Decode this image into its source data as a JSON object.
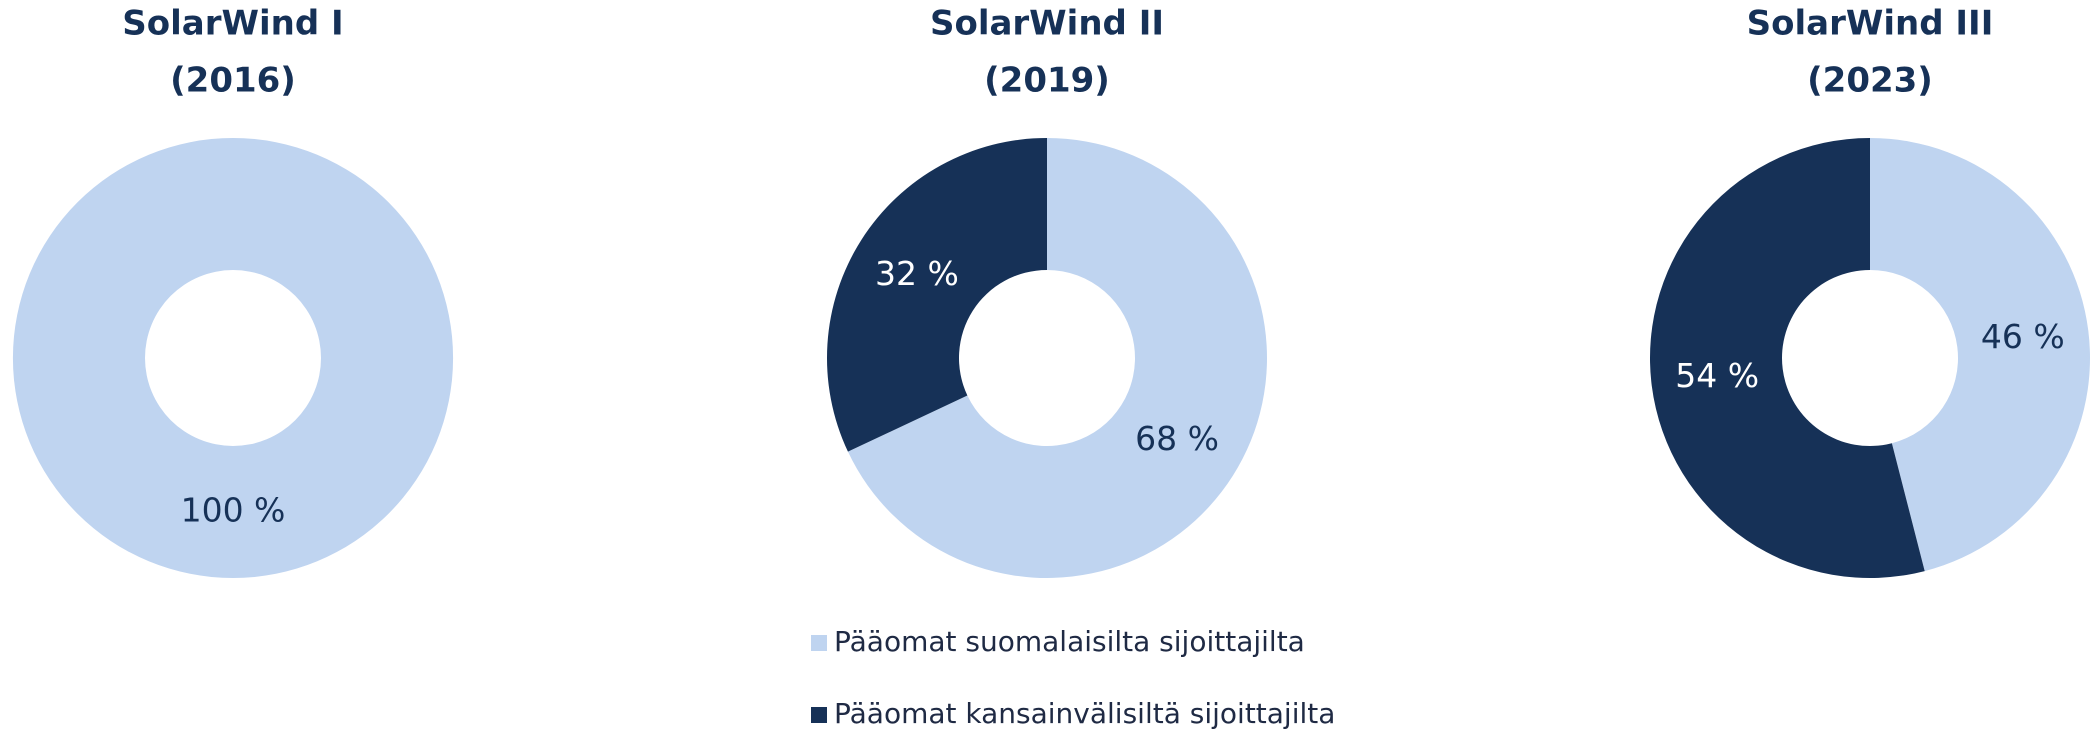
{
  "chart_data": [
    {
      "type": "pie",
      "title": "SolarWind I",
      "subtitle": "(2016)",
      "values": [
        100
      ],
      "value_labels": [
        "100 %"
      ]
    },
    {
      "type": "pie",
      "title": "SolarWind II",
      "subtitle": "(2019)",
      "values": [
        68,
        32
      ],
      "value_labels": [
        "68 %",
        "32 %"
      ]
    },
    {
      "type": "pie",
      "title": "SolarWind III",
      "subtitle": "(2023)",
      "values": [
        46,
        54
      ],
      "value_labels": [
        "46 %",
        "54 %"
      ]
    }
  ],
  "legend": {
    "labels": [
      "Pääomat suomalaisilta sijoittajilta",
      "Pääomat kansainvälisiltä sijoittajilta"
    ],
    "colors": [
      "#bfd4f0",
      "#163157"
    ],
    "label_colors": [
      "#163157",
      "#ffffff"
    ]
  }
}
